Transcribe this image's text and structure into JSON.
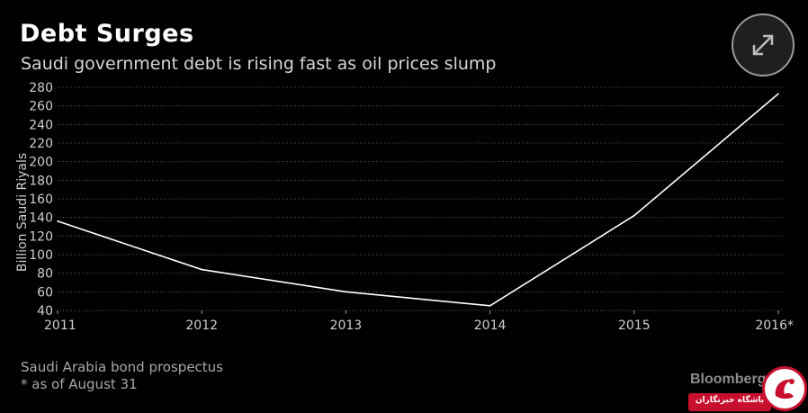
{
  "header": {
    "title": "Debt Surges",
    "subtitle": "Saudi government debt is rising fast as oil prices slump"
  },
  "footer": {
    "source": "Saudi Arabia bond prospectus",
    "note": "* as of August 31",
    "brand": "Bloomberg"
  },
  "watermark": {
    "text": "باشگاه خبرنگاران"
  },
  "icons": {
    "expand": "expand-arrows-icon"
  },
  "colors": {
    "background": "#000000",
    "line": "#ffffff",
    "grid": "#5a5a5a",
    "watermark": "#c8102e"
  },
  "chart_data": {
    "type": "line",
    "title": "Debt Surges",
    "subtitle": "Saudi government debt is rising fast as oil prices slump",
    "ylabel": "Billion Saudi Riyals",
    "xlabel": "",
    "categories": [
      "2011",
      "2012",
      "2013",
      "2014",
      "2015",
      "2016*"
    ],
    "values": [
      136,
      84,
      60,
      45,
      142,
      273
    ],
    "ylim": [
      40,
      280
    ],
    "yticks": [
      40,
      60,
      80,
      100,
      120,
      140,
      160,
      180,
      200,
      220,
      240,
      260,
      280
    ],
    "grid": true,
    "legend": "none"
  }
}
